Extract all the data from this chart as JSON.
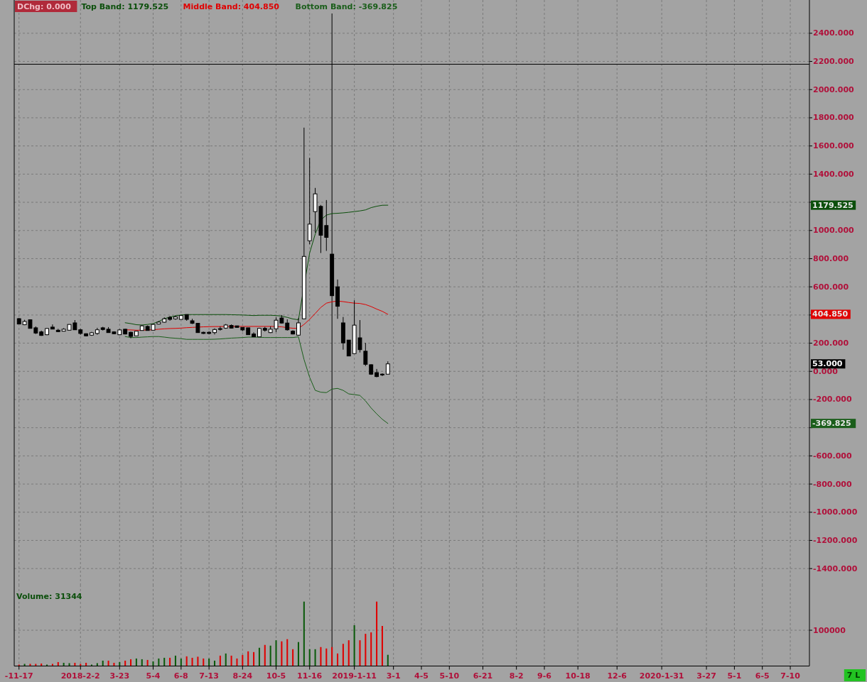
{
  "chart_data": [
    {
      "type": "candlestick",
      "x": [
        "2017-11-17",
        "2017-11-24",
        "2017-12-01",
        "2017-12-08",
        "2017-12-15",
        "2017-12-22",
        "2017-12-29",
        "2018-01-05",
        "2018-01-12",
        "2018-01-19",
        "2018-01-26",
        "2018-02-02",
        "2018-02-09",
        "2018-02-16",
        "2018-02-23",
        "2018-03-02",
        "2018-03-09",
        "2018-03-16",
        "2018-03-23",
        "2018-03-30",
        "2018-04-06",
        "2018-04-13",
        "2018-04-20",
        "2018-04-27",
        "2018-05-04",
        "2018-05-11",
        "2018-05-18",
        "2018-05-25",
        "2018-06-01",
        "2018-06-08",
        "2018-06-15",
        "2018-06-22",
        "2018-06-29",
        "2018-07-06",
        "2018-07-13",
        "2018-07-20",
        "2018-07-27",
        "2018-08-03",
        "2018-08-10",
        "2018-08-17",
        "2018-08-24",
        "2018-08-31",
        "2018-09-07",
        "2018-09-14",
        "2018-09-21",
        "2018-09-28",
        "2018-10-05",
        "2018-10-12",
        "2018-10-19",
        "2018-10-26",
        "2018-11-02",
        "2018-11-09",
        "2018-11-16",
        "2018-11-23",
        "2018-11-30",
        "2018-12-07",
        "2018-12-14",
        "2018-12-21",
        "2018-12-28",
        "2019-01-04",
        "2019-01-11",
        "2019-01-18",
        "2019-01-25",
        "2019-02-01",
        "2019-02-08",
        "2019-02-15",
        "2019-02-22"
      ],
      "ohlc": [
        [
          374,
          379,
          336,
          336
        ],
        [
          331,
          366,
          328,
          354
        ],
        [
          366,
          369,
          305,
          305
        ],
        [
          309,
          319,
          265,
          272
        ],
        [
          280,
          289,
          252,
          255
        ],
        [
          260,
          307,
          257,
          304
        ],
        [
          314,
          333,
          300,
          300
        ],
        [
          292,
          302,
          280,
          282
        ],
        [
          285,
          307,
          285,
          299
        ],
        [
          292,
          333,
          292,
          333
        ],
        [
          344,
          364,
          295,
          295
        ],
        [
          295,
          302,
          260,
          269
        ],
        [
          267,
          270,
          248,
          252
        ],
        [
          257,
          280,
          252,
          274
        ],
        [
          269,
          309,
          260,
          295
        ],
        [
          309,
          316,
          290,
          297
        ],
        [
          299,
          314,
          275,
          275
        ],
        [
          280,
          284,
          265,
          267
        ],
        [
          260,
          300,
          257,
          294
        ],
        [
          299,
          302,
          262,
          265
        ],
        [
          277,
          282,
          235,
          248
        ],
        [
          252,
          285,
          252,
          285
        ],
        [
          290,
          329,
          290,
          323
        ],
        [
          319,
          326,
          290,
          290
        ],
        [
          292,
          338,
          292,
          333
        ],
        [
          336,
          356,
          333,
          349
        ],
        [
          349,
          383,
          346,
          373
        ],
        [
          383,
          393,
          359,
          369
        ],
        [
          373,
          396,
          366,
          386
        ],
        [
          369,
          400,
          369,
          396
        ],
        [
          403,
          403,
          359,
          369
        ],
        [
          359,
          373,
          336,
          341
        ],
        [
          341,
          341,
          275,
          275
        ],
        [
          277,
          282,
          265,
          269
        ],
        [
          277,
          285,
          262,
          269
        ],
        [
          275,
          305,
          262,
          297
        ],
        [
          303,
          319,
          289,
          302
        ],
        [
          307,
          336,
          302,
          329
        ],
        [
          326,
          333,
          304,
          307
        ],
        [
          323,
          323,
          312,
          312
        ],
        [
          312,
          312,
          285,
          294
        ],
        [
          309,
          309,
          260,
          260
        ],
        [
          265,
          277,
          245,
          245
        ],
        [
          245,
          309,
          243,
          305
        ],
        [
          305,
          316,
          282,
          292
        ],
        [
          275,
          319,
          272,
          299
        ],
        [
          302,
          383,
          279,
          363
        ],
        [
          379,
          400,
          339,
          343
        ],
        [
          343,
          369,
          289,
          295
        ],
        [
          285,
          292,
          262,
          265
        ],
        [
          257,
          378,
          252,
          344
        ],
        [
          373,
          1730,
          373,
          816
        ],
        [
          927,
          1515,
          902,
          1045
        ],
        [
          1134,
          1302,
          985,
          1260
        ],
        [
          1171,
          1181,
          840,
          966
        ],
        [
          1035,
          1216,
          855,
          951
        ],
        [
          832,
          832,
          537,
          537
        ],
        [
          600,
          652,
          373,
          462
        ],
        [
          344,
          386,
          154,
          202
        ],
        [
          222,
          222,
          109,
          109
        ],
        [
          126,
          504,
          126,
          328
        ],
        [
          238,
          364,
          134,
          154
        ],
        [
          143,
          202,
          38,
          50
        ],
        [
          47,
          50,
          -25,
          -20
        ],
        [
          -9,
          17,
          -42,
          -37
        ],
        [
          -20,
          -14,
          -34,
          -22
        ],
        [
          -20,
          71,
          -20,
          53
        ]
      ],
      "series": [
        {
          "type": "line",
          "name": "Top Band: 1179.525",
          "color": "#0b4f0b",
          "values": [
            null,
            null,
            null,
            null,
            null,
            null,
            null,
            null,
            null,
            null,
            null,
            null,
            null,
            null,
            null,
            null,
            null,
            null,
            null,
            345,
            339,
            331,
            329,
            333,
            339,
            354,
            374,
            385,
            395,
            400,
            403,
            403,
            403,
            403,
            403,
            403,
            403,
            403,
            402,
            401,
            400,
            398,
            396,
            398,
            398,
            398,
            396,
            392,
            383,
            372,
            366,
            605,
            840,
            974,
            1075,
            1109,
            1120,
            1122,
            1125,
            1129,
            1134,
            1139,
            1146,
            1162,
            1172,
            1179,
            1179.525
          ]
        },
        {
          "type": "line",
          "name": "Middle Band: 404.850",
          "color": "#e00000",
          "values": [
            null,
            null,
            null,
            null,
            null,
            null,
            null,
            null,
            null,
            null,
            null,
            null,
            null,
            null,
            null,
            null,
            null,
            null,
            null,
            295,
            294,
            292,
            292,
            294,
            295,
            299,
            302,
            304,
            305,
            307,
            310,
            312,
            314,
            316,
            317,
            318,
            318,
            318,
            319,
            319,
            319,
            319,
            319,
            319,
            319,
            319,
            318,
            316,
            310,
            306,
            305,
            333,
            369,
            411,
            454,
            484,
            494,
            499,
            495,
            489,
            484,
            482,
            474,
            460,
            442,
            426,
            404.85
          ]
        },
        {
          "type": "line",
          "name": "Bottom Band: -369.825",
          "color": "#1a5e1a",
          "values": [
            null,
            null,
            null,
            null,
            null,
            null,
            null,
            null,
            null,
            null,
            null,
            null,
            null,
            null,
            null,
            null,
            null,
            null,
            null,
            247,
            240,
            240,
            243,
            245,
            247,
            247,
            243,
            238,
            235,
            232,
            227,
            227,
            227,
            227,
            227,
            228,
            230,
            233,
            236,
            238,
            240,
            243,
            243,
            242,
            240,
            240,
            240,
            240,
            240,
            240,
            245,
            84,
            -42,
            -135,
            -148,
            -151,
            -126,
            -121,
            -135,
            -160,
            -165,
            -171,
            -210,
            -260,
            -302,
            -340,
            -369.825
          ]
        }
      ],
      "xlim": [
        "2017-11-11",
        "2020-08-03"
      ],
      "xticks": [
        {
          "value": "2017-11-17",
          "label": null
        },
        {
          "value": "2018-02-02",
          "label": null
        },
        {
          "value": "2018-03-23",
          "label": null
        },
        {
          "value": "2018-05-04",
          "label": null
        },
        {
          "value": "2018-06-08",
          "label": null
        },
        {
          "value": "2018-07-13",
          "label": null
        },
        {
          "value": "2018-08-24",
          "label": null
        },
        {
          "value": "2018-10-05",
          "label": null
        },
        {
          "value": "2018-11-16",
          "label": null
        },
        {
          "value": "2019-01-11",
          "label": null
        },
        {
          "value": "2019-03-01",
          "label": null
        },
        {
          "value": "2019-04-05",
          "label": null
        },
        {
          "value": "2019-05-10",
          "label": null
        },
        {
          "value": "2019-06-21",
          "label": null
        },
        {
          "value": "2019-08-02",
          "label": null
        },
        {
          "value": "2019-09-06",
          "label": null
        },
        {
          "value": "2019-10-18",
          "label": null
        },
        {
          "value": "2019-12-06",
          "label": null
        },
        {
          "value": "2020-01-31",
          "label": null
        },
        {
          "value": "2020-03-27",
          "label": null
        },
        {
          "value": "2020-05-01",
          "label": null
        },
        {
          "value": "2020-06-05",
          "label": null
        },
        {
          "value": "2020-07-10",
          "label": null
        }
      ],
      "ylim": [
        -1515,
        2636
      ],
      "yticks": [
        {
          "value": -1400,
          "label": "-1400.000"
        },
        {
          "value": -1200,
          "label": "-1200.000"
        },
        {
          "value": -1000,
          "label": "-1000.000"
        },
        {
          "value": -800,
          "label": "-800.000"
        },
        {
          "value": -600,
          "label": "-600.000"
        },
        {
          "value": -400,
          "label": null
        },
        {
          "value": -200,
          "label": "-200.000"
        },
        {
          "value": 0,
          "label": "0.000"
        },
        {
          "value": 200,
          "label": "200.000"
        },
        {
          "value": 400,
          "label": null
        },
        {
          "value": 600,
          "label": "600.000"
        },
        {
          "value": 800,
          "label": "800.000"
        },
        {
          "value": 1000,
          "label": "1000.000"
        },
        {
          "value": 1200,
          "label": null
        },
        {
          "value": 1400,
          "label": "1400.000"
        },
        {
          "value": 1600,
          "label": "1600.000"
        },
        {
          "value": 1800,
          "label": "1800.000"
        },
        {
          "value": 2000,
          "label": "2000.000"
        },
        {
          "value": 2200,
          "label": "2200.000"
        },
        {
          "value": 2400,
          "label": "2400.000"
        }
      ],
      "tick_labels": "y",
      "grid": true,
      "legend": "top left",
      "annotations": [
        "DChg: 0.000",
        "1179.525",
        "404.850",
        "-369.825",
        "53.000"
      ],
      "ref_lines": [
        {
          "axis": "x",
          "value": "2018-12-14",
          "color": "#000000"
        },
        {
          "axis": "y",
          "value": 2180,
          "color": "#000000"
        }
      ]
    },
    {
      "type": "bar",
      "x": [
        "2017-11-17",
        "2017-11-24",
        "2017-12-01",
        "2017-12-08",
        "2017-12-15",
        "2017-12-22",
        "2017-12-29",
        "2018-01-05",
        "2018-01-12",
        "2018-01-19",
        "2018-01-26",
        "2018-02-02",
        "2018-02-09",
        "2018-02-16",
        "2018-02-23",
        "2018-03-02",
        "2018-03-09",
        "2018-03-16",
        "2018-03-23",
        "2018-03-30",
        "2018-04-06",
        "2018-04-13",
        "2018-04-20",
        "2018-04-27",
        "2018-05-04",
        "2018-05-11",
        "2018-05-18",
        "2018-05-25",
        "2018-06-01",
        "2018-06-08",
        "2018-06-15",
        "2018-06-22",
        "2018-06-29",
        "2018-07-06",
        "2018-07-13",
        "2018-07-20",
        "2018-07-27",
        "2018-08-03",
        "2018-08-10",
        "2018-08-17",
        "2018-08-24",
        "2018-08-31",
        "2018-09-07",
        "2018-09-14",
        "2018-09-21",
        "2018-09-28",
        "2018-10-05",
        "2018-10-12",
        "2018-10-19",
        "2018-10-26",
        "2018-11-02",
        "2018-11-09",
        "2018-11-16",
        "2018-11-23",
        "2018-11-30",
        "2018-12-07",
        "2018-12-14",
        "2018-12-21",
        "2018-12-28",
        "2019-01-04",
        "2019-01-11",
        "2019-01-18",
        "2019-01-25",
        "2019-02-01",
        "2019-02-08",
        "2019-02-15",
        "2019-02-22"
      ],
      "series": [
        {
          "name": "Volume: 31344",
          "colors": [
            "#e00000",
            "#0b5a0b",
            "#e00000",
            "#e00000",
            "#e00000",
            "#0b5a0b",
            "#e00000",
            "#e00000",
            "#0b5a0b",
            "#0b5a0b",
            "#e00000",
            "#e00000",
            "#e00000",
            "#0b5a0b",
            "#0b5a0b",
            "#0b5a0b",
            "#e00000",
            "#e00000",
            "#0b5a0b",
            "#e00000",
            "#e00000",
            "#0b5a0b",
            "#0b5a0b",
            "#e00000",
            "#0b5a0b",
            "#0b5a0b",
            "#0b5a0b",
            "#e00000",
            "#0b5a0b",
            "#0b5a0b",
            "#e00000",
            "#e00000",
            "#e00000",
            "#e00000",
            "#0b5a0b",
            "#0b5a0b",
            "#e00000",
            "#0b5a0b",
            "#e00000",
            "#e00000",
            "#e00000",
            "#e00000",
            "#e00000",
            "#0b5a0b",
            "#e00000",
            "#0b5a0b",
            "#0b5a0b",
            "#e00000",
            "#e00000",
            "#e00000",
            "#0b5a0b",
            "#0b5a0b",
            "#0b5a0b",
            "#0b5a0b",
            "#e00000",
            "#e00000",
            "#e00000",
            "#e00000",
            "#e00000",
            "#e00000",
            "#0b5a0b",
            "#e00000",
            "#e00000",
            "#e00000",
            "#e00000",
            "#e00000",
            "#0b5a0b"
          ],
          "values": [
            4000,
            6000,
            6000,
            6000,
            7000,
            4000,
            6000,
            11000,
            9000,
            8000,
            9000,
            6000,
            9000,
            4000,
            8000,
            15000,
            15000,
            9000,
            11000,
            15000,
            19000,
            21000,
            19000,
            17000,
            13000,
            21000,
            23000,
            23000,
            29000,
            21000,
            27000,
            23000,
            26000,
            21000,
            21000,
            15000,
            29000,
            35000,
            29000,
            21000,
            31000,
            41000,
            39000,
            51000,
            59000,
            57000,
            72000,
            69000,
            75000,
            47000,
            67000,
            180000,
            47000,
            47000,
            53000,
            49000,
            53000,
            35000,
            62000,
            72000,
            114000,
            72000,
            90000,
            94000,
            180000,
            112000,
            31344
          ]
        }
      ],
      "xlim": [
        "2017-11-11",
        "2020-08-03"
      ],
      "xticks": [
        {
          "value": "2017-11-17",
          "label": "-11-17"
        },
        {
          "value": "2018-02-02",
          "label": "2018-2-2"
        },
        {
          "value": "2018-03-23",
          "label": "3-23"
        },
        {
          "value": "2018-05-04",
          "label": "5-4"
        },
        {
          "value": "2018-06-08",
          "label": "6-8"
        },
        {
          "value": "2018-07-13",
          "label": "7-13"
        },
        {
          "value": "2018-08-24",
          "label": "8-24"
        },
        {
          "value": "2018-10-05",
          "label": "10-5"
        },
        {
          "value": "2018-11-16",
          "label": "11-16"
        },
        {
          "value": "2019-01-11",
          "label": "2019-1-11"
        },
        {
          "value": "2019-03-01",
          "label": "3-1"
        },
        {
          "value": "2019-04-05",
          "label": "4-5"
        },
        {
          "value": "2019-05-10",
          "label": "5-10"
        },
        {
          "value": "2019-06-21",
          "label": "6-21"
        },
        {
          "value": "2019-08-02",
          "label": "8-2"
        },
        {
          "value": "2019-09-06",
          "label": "9-6"
        },
        {
          "value": "2019-10-18",
          "label": "10-18"
        },
        {
          "value": "2019-12-06",
          "label": "12-6"
        },
        {
          "value": "2020-01-31",
          "label": "2020-1-31"
        },
        {
          "value": "2020-03-27",
          "label": "3-27"
        },
        {
          "value": "2020-05-01",
          "label": "5-1"
        },
        {
          "value": "2020-06-05",
          "label": "6-5"
        },
        {
          "value": "2020-07-10",
          "label": "7-10"
        }
      ],
      "ylim": [
        0,
        227000
      ],
      "yticks": [
        100000
      ],
      "grid": true,
      "legend": "top left",
      "annotations": [
        "7 L"
      ],
      "ref_lines": [
        {
          "axis": "x",
          "value": "2018-12-14",
          "color": "#000000"
        }
      ]
    }
  ]
}
